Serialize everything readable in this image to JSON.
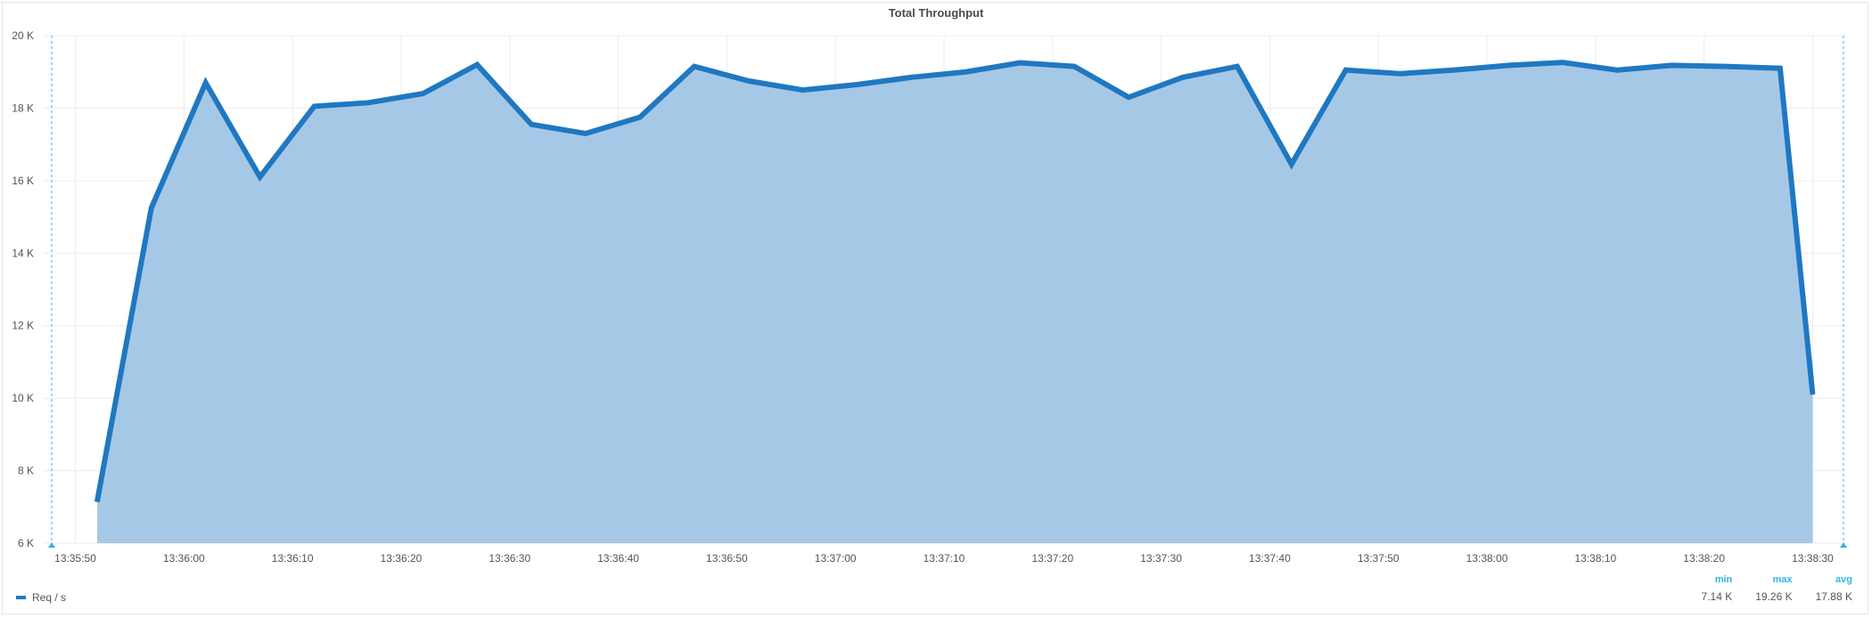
{
  "panel": {
    "title": "Total Throughput"
  },
  "colors": {
    "series": "#1f78c1",
    "fill": "#a6c8e7",
    "grid": "#ececec",
    "marker": "#33b5e5"
  },
  "legend": {
    "headers": {
      "min": "min",
      "max": "max",
      "avg": "avg"
    },
    "values": {
      "min": "7.14 K",
      "max": "19.26 K",
      "avg": "17.88 K"
    }
  },
  "chart_data": {
    "type": "area",
    "title": "Total Throughput",
    "xlabel": "",
    "ylabel": "",
    "ylim": [
      6000,
      20000
    ],
    "grid": true,
    "legend_position": "bottom-left",
    "ytick_values": [
      6000,
      8000,
      10000,
      12000,
      14000,
      16000,
      18000,
      20000
    ],
    "ytick_labels": [
      "6 K",
      "8 K",
      "10 K",
      "12 K",
      "14 K",
      "16 K",
      "18 K",
      "20 K"
    ],
    "xtick_labels": [
      "13:35:50",
      "13:36:00",
      "13:36:10",
      "13:36:20",
      "13:36:30",
      "13:36:40",
      "13:36:50",
      "13:37:00",
      "13:37:10",
      "13:37:20",
      "13:37:30",
      "13:37:40",
      "13:37:50",
      "13:38:00",
      "13:38:10",
      "13:38:20",
      "13:38:30"
    ],
    "xlim": [
      "13:35:47",
      "13:38:33"
    ],
    "series": [
      {
        "name": "Req / s",
        "x": [
          "13:35:52",
          "13:35:57",
          "13:36:02",
          "13:36:07",
          "13:36:12",
          "13:36:17",
          "13:36:22",
          "13:36:27",
          "13:36:32",
          "13:36:37",
          "13:36:42",
          "13:36:47",
          "13:36:52",
          "13:36:57",
          "13:37:02",
          "13:37:07",
          "13:37:12",
          "13:37:17",
          "13:37:22",
          "13:37:27",
          "13:37:32",
          "13:37:37",
          "13:37:42",
          "13:37:47",
          "13:37:52",
          "13:37:57",
          "13:38:02",
          "13:38:07",
          "13:38:12",
          "13:38:17",
          "13:38:22",
          "13:38:27",
          "13:38:30"
        ],
        "values": [
          7140,
          15250,
          18700,
          16100,
          18050,
          18150,
          18400,
          19200,
          17550,
          17300,
          17750,
          19150,
          18750,
          18500,
          18650,
          18850,
          19000,
          19250,
          19150,
          18300,
          18850,
          19150,
          16450,
          19050,
          18950,
          19050,
          19180,
          19260,
          19050,
          19180,
          19150,
          19100,
          10100
        ]
      }
    ]
  }
}
